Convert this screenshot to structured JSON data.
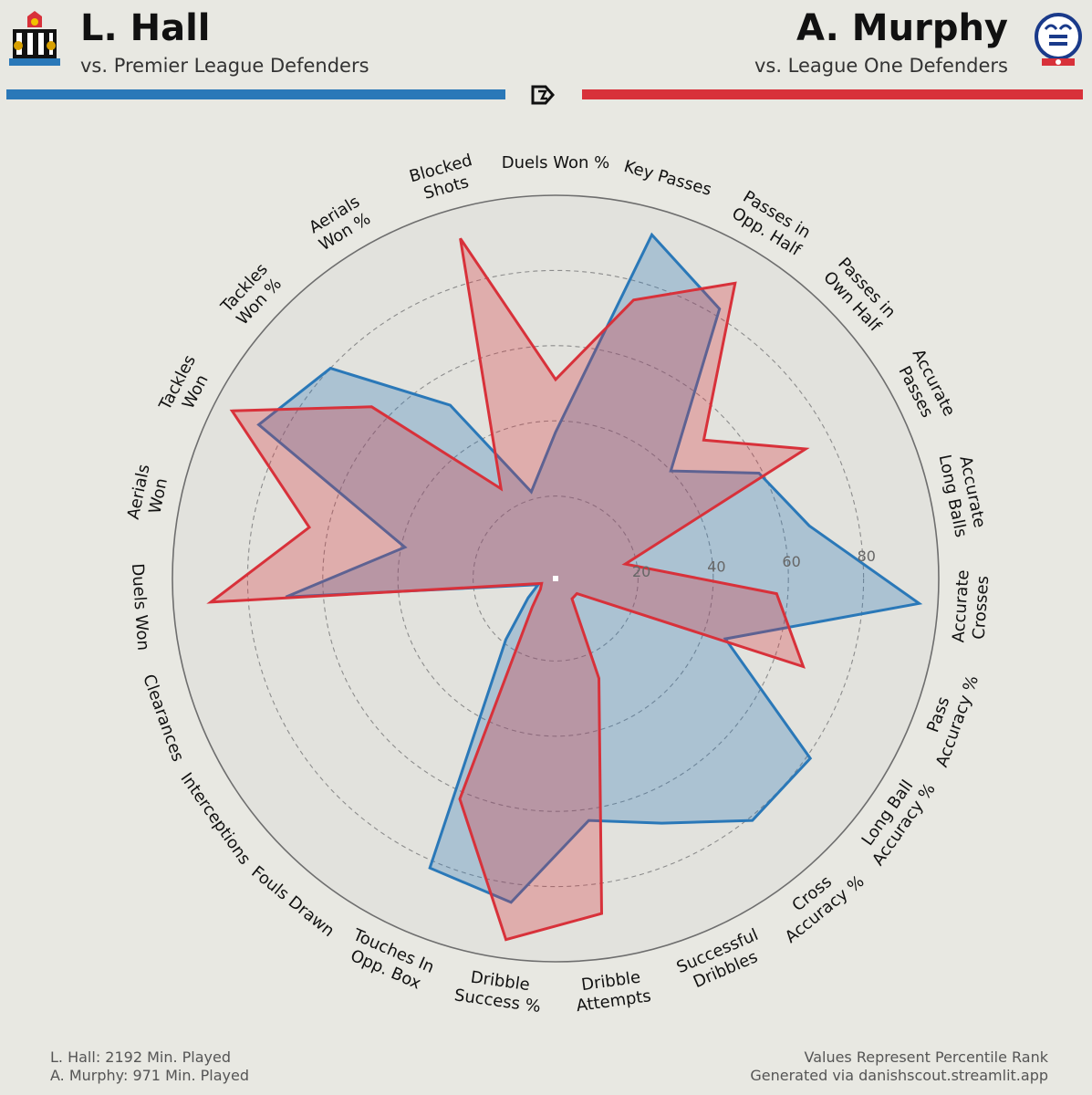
{
  "header": {
    "left": {
      "name": "L. Hall",
      "subtitle": "vs. Premier League Defenders",
      "color": "#2a78b8"
    },
    "right": {
      "name": "A. Murphy",
      "subtitle": "vs. League One Defenders",
      "color": "#d8313a"
    }
  },
  "footer": {
    "left_line1": "L. Hall: 2192 Min. Played",
    "left_line2": "A. Murphy: 971 Min. Played",
    "right_line1": "Values Represent Percentile Rank",
    "right_line2": "Generated via danishscout.streamlit.app"
  },
  "chart_data": {
    "type": "radar",
    "range": [
      0,
      100
    ],
    "ring_ticks": [
      "20",
      "40",
      "60",
      "80"
    ],
    "categories": [
      "Duels Won %",
      "Key Passes",
      "Passes in\nOpp. Half",
      "Passes in\nOwn Half",
      "Accurate\nPasses",
      "Accurate\nLong Balls",
      "Accurate\nCrosses",
      "Pass\nAccuracy %",
      "Long Ball\nAccuracy %",
      "Cross\nAccuracy %",
      "Successful\nDribbles",
      "Dribble\nAttempts",
      "Dribble\nSuccess %",
      "Touches In\nOpp. Box",
      "Fouls Drawn",
      "Interceptions",
      "Clearances",
      "Duels Won",
      "Aerials\nWon",
      "Tackles\nWon",
      "Tackles\nWon %",
      "Aerials\nWon %",
      "Blocked\nShots"
    ],
    "series": [
      {
        "name": "L. Hall",
        "color": "#2a78b8",
        "values": [
          37,
          93,
          82,
          40,
          59,
          67,
          95,
          46,
          81,
          81,
          69,
          63,
          85,
          82,
          19,
          7,
          3,
          70,
          39,
          87,
          80,
          52,
          22
        ]
      },
      {
        "name": "A. Murphy",
        "color": "#d8313a",
        "values": [
          51,
          75,
          90,
          52,
          73,
          17,
          57,
          68,
          5,
          5,
          27,
          88,
          95,
          62,
          8,
          3,
          2,
          90,
          65,
          95,
          65,
          26,
          92
        ]
      }
    ]
  }
}
